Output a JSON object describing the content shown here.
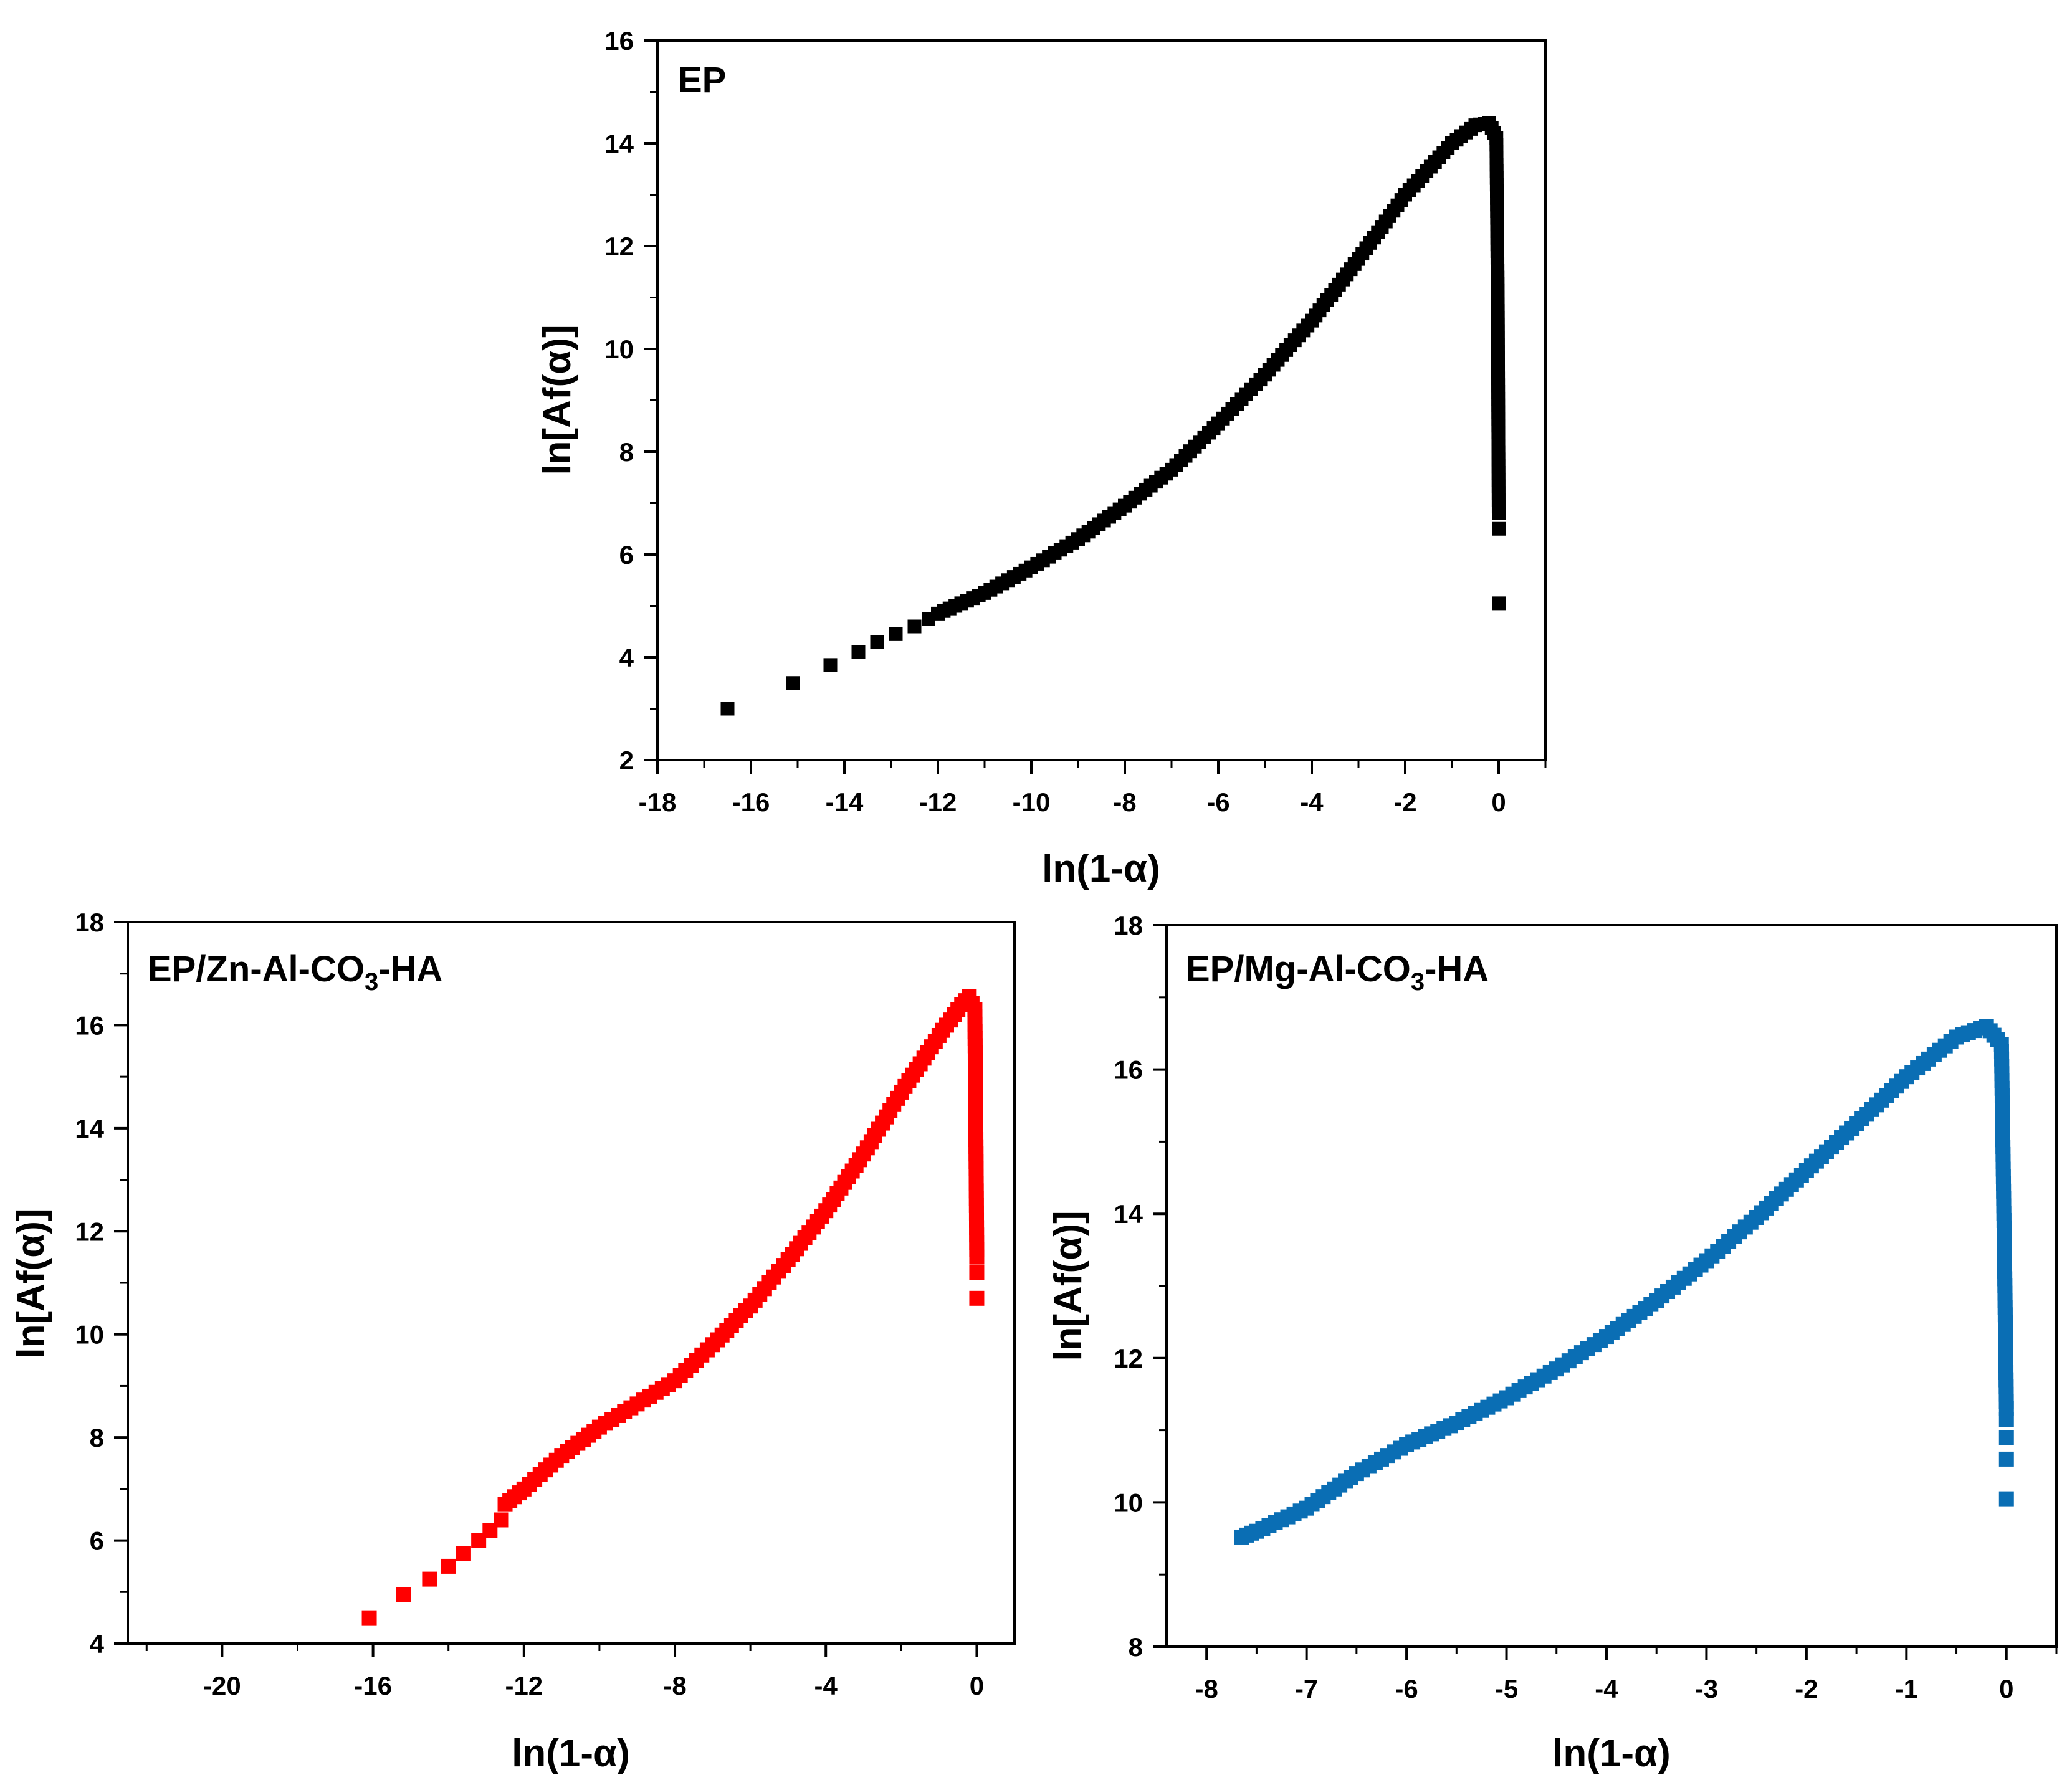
{
  "chart_data": [
    {
      "type": "scatter",
      "id": "ep",
      "title": "EP",
      "xlabel": "ln(1-α)",
      "ylabel": "ln[Af(α)]",
      "xlim": [
        -18,
        1
      ],
      "ylim": [
        2,
        16
      ],
      "xticks": [
        -18,
        -16,
        -14,
        -12,
        -10,
        -8,
        -6,
        -4,
        -2,
        0
      ],
      "yticks": [
        2,
        4,
        6,
        8,
        10,
        12,
        14,
        16
      ],
      "tick_labels_x": [
        "-18",
        "-16",
        "-14",
        "-12",
        "-10",
        "-8",
        "-6",
        "-4",
        "-2",
        "0"
      ],
      "tick_labels_y": [
        "2",
        "4",
        "6",
        "8",
        "10",
        "12",
        "14",
        "16"
      ],
      "color": "#000000",
      "marker": "square",
      "curve": [
        [
          -12,
          4.85
        ],
        [
          -11,
          5.25
        ],
        [
          -10,
          5.75
        ],
        [
          -9,
          6.3
        ],
        [
          -8,
          6.95
        ],
        [
          -7,
          7.65
        ],
        [
          -6,
          8.55
        ],
        [
          -5,
          9.5
        ],
        [
          -4,
          10.55
        ],
        [
          -3,
          11.75
        ],
        [
          -2,
          13.0
        ],
        [
          -1,
          14.0
        ],
        [
          -0.5,
          14.35
        ],
        [
          -0.2,
          14.4
        ],
        [
          -0.05,
          14.1
        ],
        [
          -0.02,
          11.0
        ],
        [
          0,
          6.8
        ]
      ],
      "points": [
        [
          -16.5,
          3.0
        ],
        [
          -15.1,
          3.5
        ],
        [
          -14.3,
          3.85
        ],
        [
          -13.7,
          4.1
        ],
        [
          -13.3,
          4.3
        ],
        [
          -12.9,
          4.45
        ],
        [
          -12.5,
          4.6
        ],
        [
          -12.2,
          4.75
        ],
        [
          0,
          6.5
        ],
        [
          0,
          5.05
        ]
      ]
    },
    {
      "type": "scatter",
      "id": "zn",
      "title": "EP/Zn-Al-CO",
      "title_sub": "3",
      "title_tail": "-HA",
      "xlabel": "ln(1-α)",
      "ylabel": "ln[Af(α)]",
      "xlim": [
        -22.5,
        1
      ],
      "ylim": [
        4,
        18
      ],
      "xticks": [
        -20,
        -16,
        -12,
        -8,
        -4,
        0
      ],
      "yticks": [
        4,
        6,
        8,
        10,
        12,
        14,
        16,
        18
      ],
      "tick_labels_x": [
        "-20",
        "-16",
        "-12",
        "-8",
        "-4",
        "0"
      ],
      "tick_labels_y": [
        "4",
        "6",
        "8",
        "10",
        "12",
        "14",
        "16",
        "18"
      ],
      "color": "#ff0000",
      "marker": "square",
      "curve": [
        [
          -12.5,
          6.7
        ],
        [
          -12,
          7.0
        ],
        [
          -11,
          7.65
        ],
        [
          -10,
          8.2
        ],
        [
          -9,
          8.65
        ],
        [
          -8,
          9.1
        ],
        [
          -7,
          9.8
        ],
        [
          -6,
          10.55
        ],
        [
          -5,
          11.45
        ],
        [
          -4,
          12.4
        ],
        [
          -3,
          13.5
        ],
        [
          -2,
          14.7
        ],
        [
          -1,
          15.8
        ],
        [
          -0.4,
          16.4
        ],
        [
          -0.2,
          16.55
        ],
        [
          -0.05,
          16.3
        ],
        [
          -0.02,
          13.5
        ],
        [
          0,
          11.5
        ]
      ],
      "points": [
        [
          -16.1,
          4.5
        ],
        [
          -15.2,
          4.95
        ],
        [
          -14.5,
          5.25
        ],
        [
          -14.0,
          5.5
        ],
        [
          -13.6,
          5.75
        ],
        [
          -13.2,
          6.0
        ],
        [
          -12.9,
          6.2
        ],
        [
          -12.6,
          6.4
        ],
        [
          0,
          11.2
        ],
        [
          0,
          10.7
        ]
      ]
    },
    {
      "type": "scatter",
      "id": "mg",
      "title": "EP/Mg-Al-CO",
      "title_sub": "3",
      "title_tail": "-HA",
      "xlabel": "ln(1-α)",
      "ylabel": "ln[Af(α)]",
      "xlim": [
        -8.4,
        0.5
      ],
      "ylim": [
        8,
        18
      ],
      "xticks": [
        -8,
        -7,
        -6,
        -5,
        -4,
        -3,
        -2,
        -1,
        0
      ],
      "yticks": [
        8,
        10,
        12,
        14,
        16,
        18
      ],
      "tick_labels_x": [
        "-8",
        "-7",
        "-6",
        "-5",
        "-4",
        "-3",
        "-2",
        "-1",
        "0"
      ],
      "tick_labels_y": [
        "8",
        "10",
        "12",
        "14",
        "16",
        "18"
      ],
      "color": "#0a6eb4",
      "marker": "square",
      "curve": [
        [
          -7.65,
          9.52
        ],
        [
          -7.5,
          9.6
        ],
        [
          -7,
          9.92
        ],
        [
          -6.5,
          10.4
        ],
        [
          -6,
          10.8
        ],
        [
          -5.5,
          11.1
        ],
        [
          -5,
          11.45
        ],
        [
          -4.5,
          11.85
        ],
        [
          -4,
          12.3
        ],
        [
          -3.5,
          12.8
        ],
        [
          -3,
          13.35
        ],
        [
          -2.5,
          13.95
        ],
        [
          -2,
          14.6
        ],
        [
          -1.5,
          15.25
        ],
        [
          -1,
          15.9
        ],
        [
          -0.5,
          16.45
        ],
        [
          -0.2,
          16.6
        ],
        [
          -0.05,
          16.35
        ],
        [
          -0.02,
          13.5
        ],
        [
          0,
          11.3
        ]
      ],
      "points": [
        [
          0,
          11.15
        ],
        [
          0,
          10.9
        ],
        [
          0,
          10.6
        ],
        [
          0,
          10.05
        ]
      ]
    }
  ]
}
